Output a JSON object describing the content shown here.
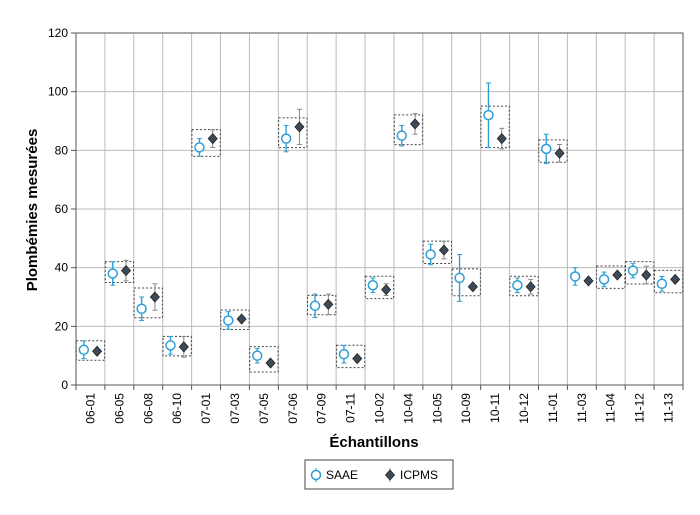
{
  "chart_data": {
    "type": "scatter",
    "xlabel": "Échantillons",
    "ylabel": "Plombémies mesurées",
    "ylim": [
      0,
      120
    ],
    "yticks": [
      0,
      20,
      40,
      60,
      80,
      100,
      120
    ],
    "grid": true,
    "legend_position": "bottom-center",
    "categories": [
      "06-01",
      "06-05",
      "06-08",
      "06-10",
      "07-01",
      "07-03",
      "07-05",
      "07-06",
      "07-09",
      "07-11",
      "10-02",
      "10-04",
      "10-05",
      "10-09",
      "10-11",
      "10-12",
      "11-01",
      "11-03",
      "11-04",
      "11-12",
      "11-13"
    ],
    "series": [
      {
        "name": "SAAE",
        "marker": "open-circle",
        "color": "#2e9fd6",
        "values": [
          12,
          38,
          26,
          13.5,
          81,
          22,
          10,
          84,
          27,
          10.5,
          34,
          85,
          44.5,
          36.5,
          92,
          34,
          80.5,
          37,
          36,
          39,
          34.5
        ],
        "err": [
          3,
          4,
          4,
          3,
          3,
          3,
          2.5,
          4.5,
          4,
          3,
          2.5,
          3.5,
          3.5,
          8,
          11,
          2.5,
          5,
          3,
          2.5,
          2.5,
          2.5
        ]
      },
      {
        "name": "ICPMS",
        "marker": "diamond",
        "color": "#3d4a58",
        "values": [
          11.5,
          39,
          30,
          13,
          84,
          22.5,
          7.5,
          88,
          27.5,
          9,
          32.5,
          89,
          46,
          33.5,
          84,
          33.5,
          79,
          35.5,
          37.5,
          37.5,
          36
        ],
        "err": [
          0,
          3.5,
          4.5,
          3.5,
          3,
          0,
          0,
          6,
          3.5,
          0,
          2,
          3.5,
          3,
          0,
          3.5,
          2.5,
          3,
          0,
          0,
          3,
          0
        ]
      }
    ],
    "boxed_pairs": [
      0,
      1,
      2,
      3,
      4,
      5,
      6,
      7,
      8,
      9,
      10,
      11,
      12,
      13,
      14,
      15,
      16,
      18,
      19,
      20
    ]
  }
}
